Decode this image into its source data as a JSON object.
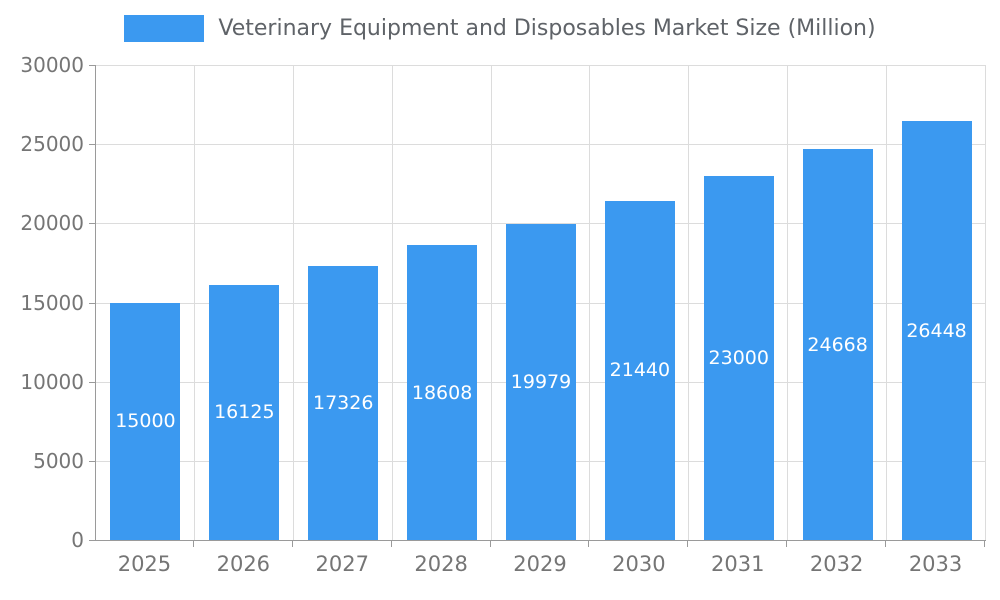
{
  "chart_data": {
    "type": "bar",
    "title": "Veterinary Equipment and Disposables Market Size (Million)",
    "categories": [
      "2025",
      "2026",
      "2027",
      "2028",
      "2029",
      "2030",
      "2031",
      "2032",
      "2033"
    ],
    "values": [
      15000,
      16125,
      17326,
      18608,
      19979,
      21440,
      23000,
      24668,
      26448
    ],
    "xlabel": "",
    "ylabel": "",
    "ylim": [
      0,
      30000
    ],
    "yticks": [
      0,
      5000,
      10000,
      15000,
      20000,
      25000,
      30000
    ],
    "grid": "on",
    "legend_position": "top",
    "colors": {
      "bar": "#3b99f0",
      "bar_label_text": "#ffffff",
      "axis_line": "#9a9a9a",
      "gridline": "#dcdcdc",
      "tick_text": "#757575",
      "title_text": "#5f6368",
      "background": "#ffffff"
    }
  }
}
